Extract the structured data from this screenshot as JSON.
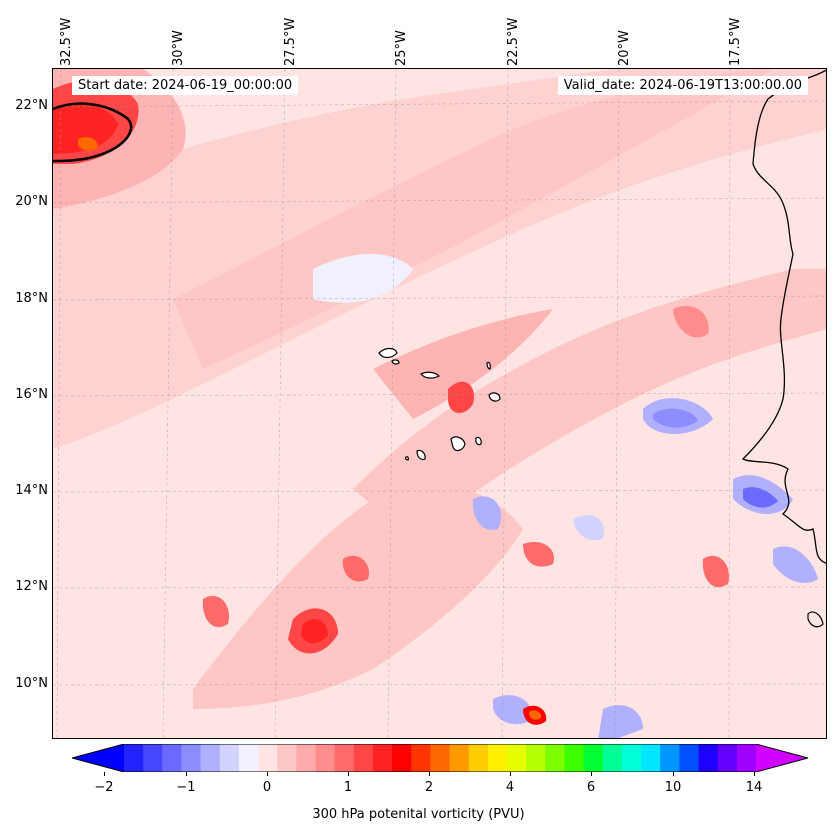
{
  "map": {
    "lon_labels": [
      "32.5°W",
      "30°W",
      "27.5°W",
      "25°W",
      "22.5°W",
      "20°W",
      "17.5°W"
    ],
    "lat_labels": [
      "22°N",
      "20°N",
      "18°N",
      "16°N",
      "14°N",
      "12°N",
      "10°N"
    ],
    "start_date": "Start date: 2024-06-19_00:00:00",
    "valid_date": "Valid_date: 2024-06-19T13:00:00.00",
    "background_color": "#ffe4e4",
    "coastline_color": "#000000"
  },
  "colorbar": {
    "ticks": [
      "−2",
      "−1",
      "0",
      "1",
      "2",
      "4",
      "6",
      "10",
      "14"
    ],
    "label": "300 hPa potenital vorticity (PVU)",
    "colors": [
      "#0000ff",
      "#2323ff",
      "#4646ff",
      "#6a6aff",
      "#8d8dff",
      "#b0b0ff",
      "#d3d3ff",
      "#f2f2ff",
      "#ffe4e4",
      "#ffc6c6",
      "#ffaaaa",
      "#ff8d8d",
      "#ff6a6a",
      "#ff4646",
      "#ff2323",
      "#ff0000",
      "#ff3500",
      "#ff6800",
      "#ff9a00",
      "#ffcc00",
      "#fff000",
      "#e6ff00",
      "#b4ff00",
      "#7dff00",
      "#3cff00",
      "#00ff32",
      "#00ff96",
      "#00ffd7",
      "#00e6ff",
      "#0096ff",
      "#0050ff",
      "#1e00ff",
      "#6400ff",
      "#a000ff",
      "#d200ff"
    ]
  }
}
